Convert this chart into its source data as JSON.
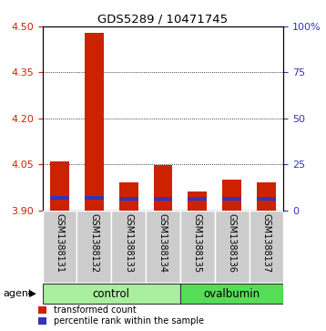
{
  "title": "GDS5289 / 10471745",
  "samples": [
    "GSM1388131",
    "GSM1388132",
    "GSM1388133",
    "GSM1388134",
    "GSM1388135",
    "GSM1388136",
    "GSM1388137"
  ],
  "transformed_count": [
    4.06,
    4.48,
    3.99,
    4.048,
    3.96,
    4.0,
    3.99
  ],
  "percentile_rank_bottom": [
    3.934,
    3.934,
    3.93,
    3.93,
    3.93,
    3.93,
    3.93
  ],
  "blue_bar_height": [
    0.013,
    0.013,
    0.013,
    0.013,
    0.013,
    0.013,
    0.013
  ],
  "base": 3.9,
  "ylim_left": [
    3.9,
    4.5
  ],
  "yticks_left": [
    3.9,
    4.05,
    4.2,
    4.35,
    4.5
  ],
  "yticks_right": [
    0,
    25,
    50,
    75,
    100
  ],
  "ylim_right": [
    0,
    100
  ],
  "bar_color": "#cc2200",
  "blue_color": "#3333bb",
  "control_color": "#aaeea0",
  "ovalbumin_color": "#55dd55",
  "bg_color": "#cccccc",
  "legend_red": "transformed count",
  "legend_blue": "percentile rank within the sample",
  "agent_label": "agent",
  "group_labels": [
    "control",
    "ovalbumin"
  ],
  "n_control": 4,
  "n_ovalbumin": 3,
  "bar_width": 0.55
}
